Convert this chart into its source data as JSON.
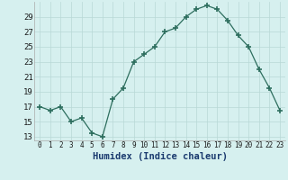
{
  "x": [
    0,
    1,
    2,
    3,
    4,
    5,
    6,
    7,
    8,
    9,
    10,
    11,
    12,
    13,
    14,
    15,
    16,
    17,
    18,
    19,
    20,
    21,
    22,
    23
  ],
  "y": [
    17,
    16.5,
    17,
    15,
    15.5,
    13.5,
    13,
    18,
    19.5,
    23,
    24,
    25,
    27,
    27.5,
    29,
    30,
    30.5,
    30,
    28.5,
    26.5,
    25,
    22,
    19.5,
    16.5
  ],
  "xlabel": "Humidex (Indice chaleur)",
  "ylim": [
    12.5,
    31
  ],
  "xlim": [
    -0.5,
    23.5
  ],
  "yticks": [
    13,
    15,
    17,
    19,
    21,
    23,
    25,
    27,
    29
  ],
  "xtick_labels": [
    "0",
    "1",
    "2",
    "3",
    "4",
    "5",
    "6",
    "7",
    "8",
    "9",
    "10",
    "11",
    "12",
    "13",
    "14",
    "15",
    "16",
    "17",
    "18",
    "19",
    "20",
    "21",
    "22",
    "23"
  ],
  "line_color": "#2d6e5e",
  "marker": "+",
  "marker_size": 4,
  "bg_color": "#d6f0ef",
  "grid_color": "#b8d8d6",
  "xlabel_color": "#1a3a6e",
  "xlabel_fontsize": 7.5,
  "ytick_fontsize": 6.5,
  "xtick_fontsize": 5.5
}
